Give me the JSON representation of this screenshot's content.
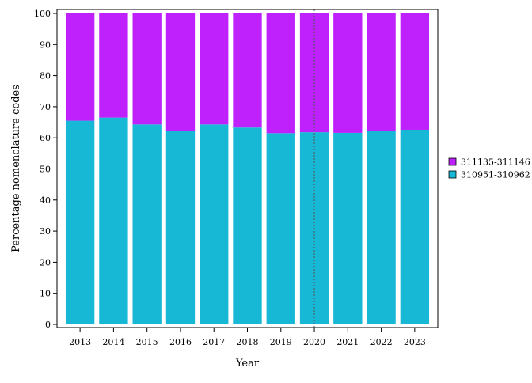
{
  "chart_data": {
    "type": "bar",
    "stacked": true,
    "xlabel": "Year",
    "ylabel": "Percentage nomenclature codes",
    "ylim": [
      0,
      100
    ],
    "yticks": [
      0,
      10,
      20,
      30,
      40,
      50,
      60,
      70,
      80,
      90,
      100
    ],
    "categories": [
      "2013",
      "2014",
      "2015",
      "2016",
      "2017",
      "2018",
      "2019",
      "2020",
      "2021",
      "2022",
      "2023"
    ],
    "series": [
      {
        "name": "310951-310962",
        "color": "#17b8d6",
        "values": [
          65.5,
          66.5,
          64.3,
          62.3,
          64.3,
          63.3,
          61.5,
          61.8,
          61.6,
          62.3,
          62.6
        ]
      },
      {
        "name": "311135-311146",
        "color": "#bf21fc",
        "values": [
          34.5,
          33.5,
          35.7,
          37.7,
          35.7,
          36.7,
          38.5,
          38.2,
          38.4,
          37.7,
          37.4
        ]
      }
    ],
    "legend": {
      "placement": "right",
      "order": [
        "311135-311146",
        "310951-310962"
      ]
    },
    "reference_line": {
      "x": "2020",
      "style": "dotted"
    },
    "grid": false
  }
}
